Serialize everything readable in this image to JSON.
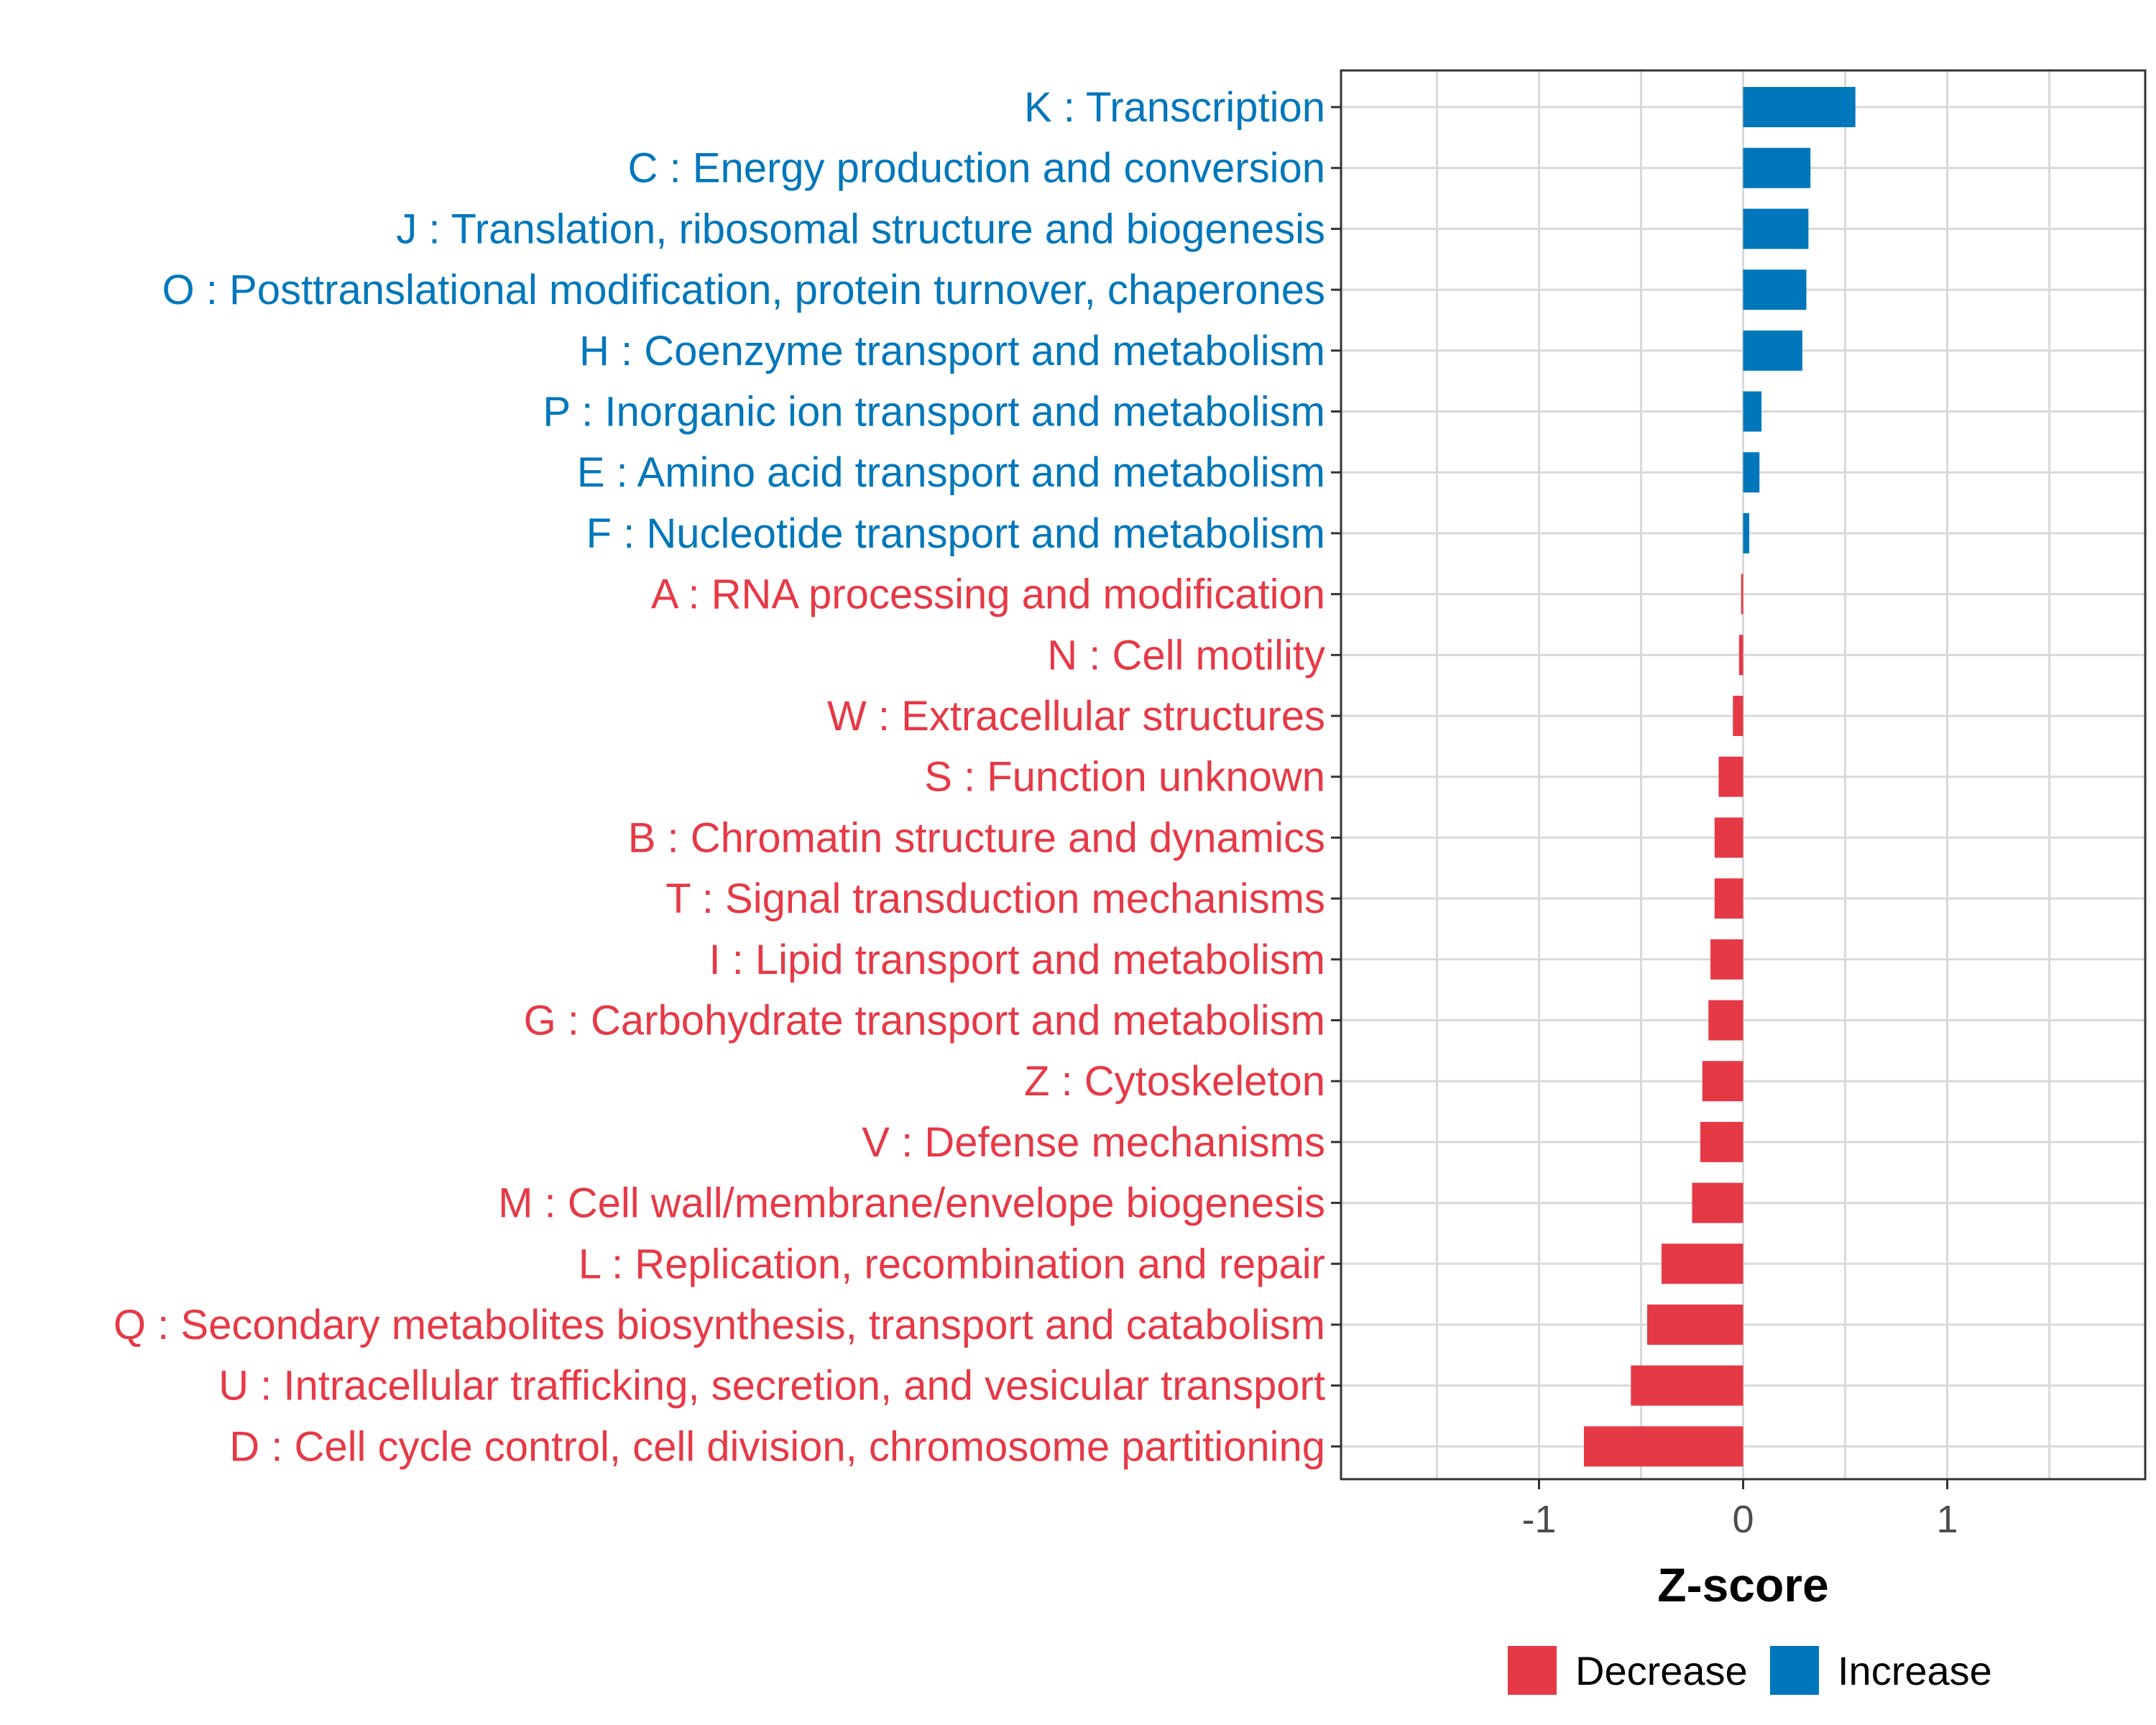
{
  "chart_data": {
    "type": "bar",
    "orientation": "horizontal",
    "xlabel": "Z-score",
    "xlim": [
      -1.97,
      1.97
    ],
    "xticks": [
      -1,
      0,
      1
    ],
    "xtick_labels": [
      "-1",
      "0",
      "1"
    ],
    "grid": true,
    "legend_position": "bottom",
    "colors": {
      "Decrease": "#e63946",
      "Increase": "#0077bb"
    },
    "categories": [
      "K : Transcription",
      "C : Energy production and conversion",
      "J : Translation, ribosomal structure and biogenesis",
      "O : Posttranslational modification, protein turnover, chaperones",
      "H : Coenzyme transport and metabolism",
      "P : Inorganic ion transport and metabolism",
      "E : Amino acid transport and metabolism",
      "F : Nucleotide transport and metabolism",
      "A : RNA processing and modification",
      "N : Cell motility",
      "W : Extracellular structures",
      "S : Function unknown",
      "B : Chromatin structure and dynamics",
      "T : Signal transduction mechanisms",
      "I : Lipid transport and metabolism",
      "G : Carbohydrate transport and metabolism",
      "Z : Cytoskeleton",
      "V : Defense mechanisms",
      "M : Cell wall/membrane/envelope biogenesis",
      "L : Replication, recombination and repair",
      "Q : Secondary metabolites biosynthesis, transport and catabolism",
      "U : Intracellular trafficking, secretion, and vesicular transport",
      "D : Cell cycle control, cell division, chromosome partitioning"
    ],
    "values": [
      0.55,
      0.33,
      0.32,
      0.31,
      0.29,
      0.09,
      0.08,
      0.03,
      -0.01,
      -0.02,
      -0.05,
      -0.12,
      -0.14,
      -0.14,
      -0.16,
      -0.17,
      -0.2,
      -0.21,
      -0.25,
      -0.4,
      -0.47,
      -0.55,
      -0.78
    ],
    "groups": [
      "Increase",
      "Increase",
      "Increase",
      "Increase",
      "Increase",
      "Increase",
      "Increase",
      "Increase",
      "Decrease",
      "Decrease",
      "Decrease",
      "Decrease",
      "Decrease",
      "Decrease",
      "Decrease",
      "Decrease",
      "Decrease",
      "Decrease",
      "Decrease",
      "Decrease",
      "Decrease",
      "Decrease",
      "Decrease"
    ],
    "legend": [
      {
        "label": "Decrease",
        "color": "#e63946"
      },
      {
        "label": "Increase",
        "color": "#0077bb"
      }
    ]
  }
}
